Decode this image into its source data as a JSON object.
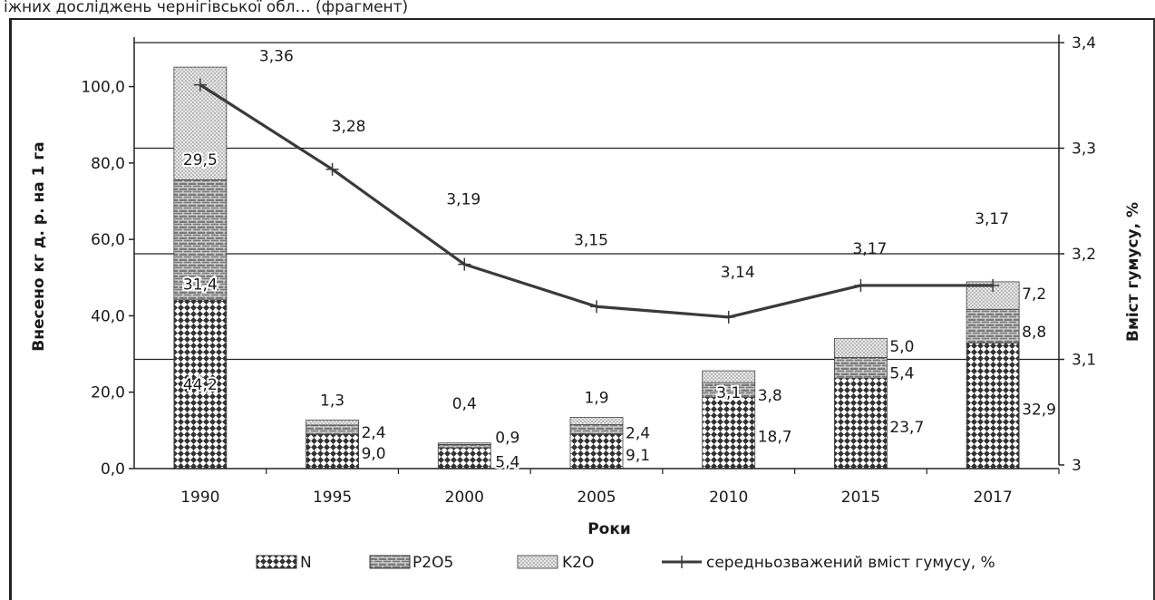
{
  "fragment_text": "іжних досліджень чернігівської обл… (фрагмент)",
  "chart_data": {
    "type": "bar",
    "stacked": true,
    "categories": [
      "1990",
      "1995",
      "2000",
      "2005",
      "2010",
      "2015",
      "2017"
    ],
    "series": [
      {
        "name": "N",
        "pattern": "diamond",
        "values": [
          44.2,
          9.0,
          5.4,
          9.1,
          18.7,
          23.7,
          32.9
        ]
      },
      {
        "name": "P2O5",
        "pattern": "brick",
        "values": [
          31.4,
          2.4,
          0.9,
          2.4,
          3.8,
          5.4,
          8.8
        ]
      },
      {
        "name": "K2O",
        "pattern": "dots",
        "values": [
          29.5,
          1.3,
          0.4,
          1.9,
          3.1,
          5.0,
          7.2
        ]
      }
    ],
    "line_series": {
      "name": "середньозважений вміст гумусу, %",
      "axis": "right",
      "values": [
        3.36,
        3.28,
        3.19,
        3.15,
        3.14,
        3.17,
        3.17
      ],
      "labels": [
        "3,36",
        "3,28",
        "3,19",
        "3,15",
        "3,14",
        "3,17",
        "3,17"
      ]
    },
    "bar_labels": {
      "N": [
        "44,2",
        "9,0",
        "5,4",
        "9,1",
        "18,7",
        "23,7",
        "32,9"
      ],
      "P2O5": [
        "31,4",
        "2,4",
        "0,9",
        "2,4",
        "3,8",
        "5,4",
        "8,8"
      ],
      "K2O": [
        "29,5",
        "1,3",
        "0,4",
        "1,9",
        "3,1",
        "5,0",
        "7,2"
      ]
    },
    "xlabel": "Роки",
    "ylabel": "Внесено кг д. р. на 1 га",
    "y2label": "Вміст гумусу, %",
    "ylim": [
      0,
      112
    ],
    "y2lim": [
      3.0,
      3.4
    ],
    "yticks": [
      0,
      20,
      40,
      60,
      80,
      100
    ],
    "ytick_labels": [
      "0,0",
      "20,0",
      "40,0",
      "60,0",
      "80,0",
      "100,0"
    ],
    "y2ticks": [
      3.0,
      3.1,
      3.2,
      3.3,
      3.4
    ],
    "y2tick_labels": [
      "3",
      "3,1",
      "3,2",
      "3,3",
      "3,4"
    ],
    "legend_position": "bottom",
    "legend": [
      "N",
      "P2O5",
      "K2O",
      "середньозважений вміст гумусу, %"
    ],
    "grid": "horizontal, right axis"
  }
}
